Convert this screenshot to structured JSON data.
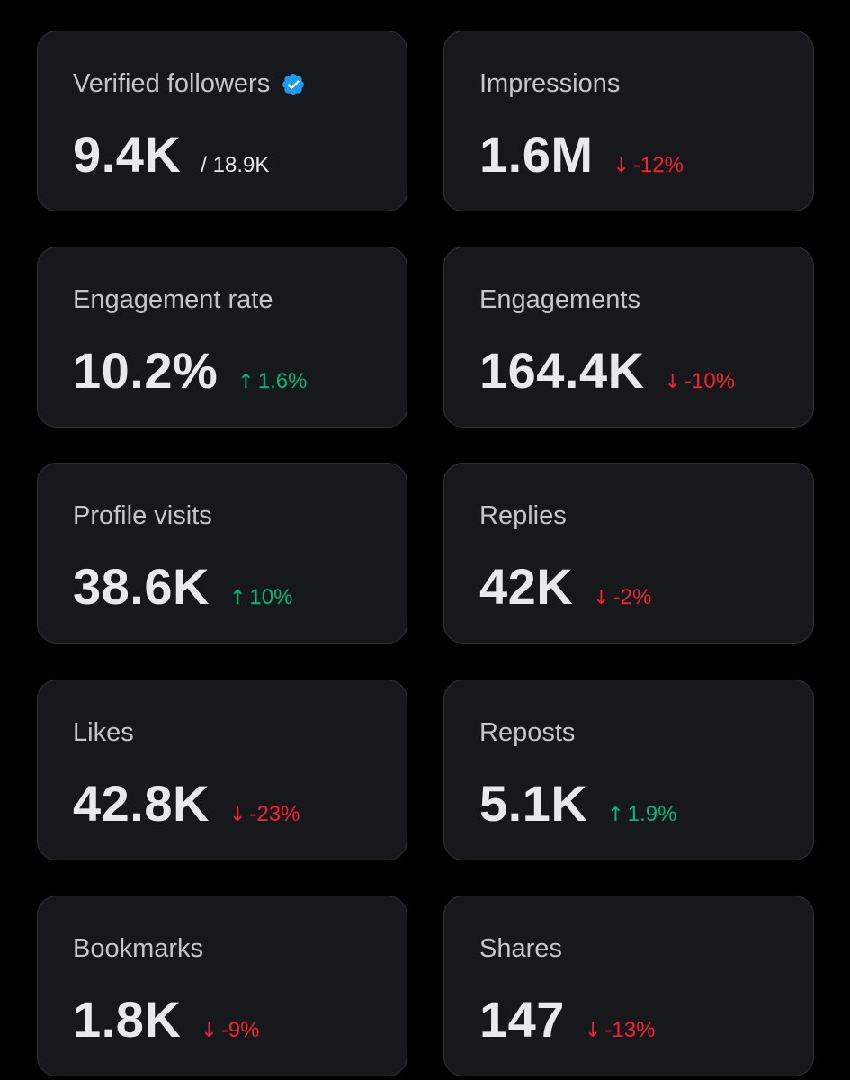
{
  "colors": {
    "background": "#000000",
    "card": "#16181c",
    "card_border": "#2f3336",
    "label": "#c4c7ca",
    "value": "#e7e9ea",
    "up": "#00ba7c",
    "down": "#f4212e",
    "verified": "#1d9bf0"
  },
  "icons": {
    "verified": "verified-badge-icon",
    "up": "arrow-up-icon",
    "down": "arrow-down-icon"
  },
  "cards": [
    {
      "id": "verified-followers",
      "label": "Verified followers",
      "value": "9.4K",
      "total": "/ 18.9K",
      "verified": true
    },
    {
      "id": "impressions",
      "label": "Impressions",
      "value": "1.6M",
      "change": "-12%",
      "direction": "down"
    },
    {
      "id": "engagement-rate",
      "label": "Engagement rate",
      "value": "10.2%",
      "change": "1.6%",
      "direction": "up"
    },
    {
      "id": "engagements",
      "label": "Engagements",
      "value": "164.4K",
      "change": "-10%",
      "direction": "down"
    },
    {
      "id": "profile-visits",
      "label": "Profile visits",
      "value": "38.6K",
      "change": "10%",
      "direction": "up"
    },
    {
      "id": "replies",
      "label": "Replies",
      "value": "42K",
      "change": "-2%",
      "direction": "down"
    },
    {
      "id": "likes",
      "label": "Likes",
      "value": "42.8K",
      "change": "-23%",
      "direction": "down"
    },
    {
      "id": "reposts",
      "label": "Reposts",
      "value": "5.1K",
      "change": "1.9%",
      "direction": "up"
    },
    {
      "id": "bookmarks",
      "label": "Bookmarks",
      "value": "1.8K",
      "change": "-9%",
      "direction": "down"
    },
    {
      "id": "shares",
      "label": "Shares",
      "value": "147",
      "change": "-13%",
      "direction": "down"
    }
  ]
}
